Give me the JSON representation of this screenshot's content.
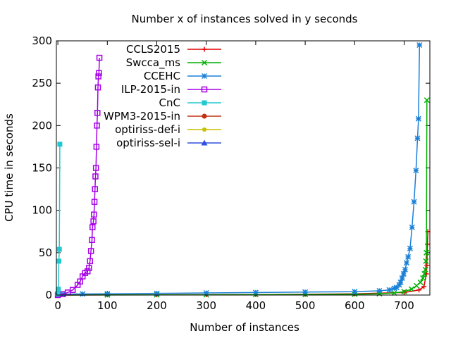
{
  "chart_data": {
    "type": "line",
    "title": "Number x of instances solved in y seconds",
    "xlabel": "Number of instances",
    "ylabel": "CPU time in seconds",
    "xlim": [
      -3,
      752
    ],
    "ylim": [
      0,
      300
    ],
    "xticks": [
      0,
      100,
      200,
      300,
      400,
      500,
      600,
      700
    ],
    "yticks": [
      0,
      50,
      100,
      150,
      200,
      250,
      300
    ],
    "grid": false,
    "legend_position": "top-left (inside plot)",
    "series": [
      {
        "name": "CCLS2015",
        "color": "#e00000",
        "marker": "plus",
        "x": [
          0,
          100,
          200,
          300,
          400,
          500,
          600,
          700,
          730,
          740,
          745,
          746,
          747,
          748
        ],
        "y": [
          0,
          0.2,
          0.3,
          0.4,
          0.6,
          0.9,
          1.5,
          3,
          6,
          10,
          25,
          35,
          60,
          75
        ]
      },
      {
        "name": "Swcca_ms",
        "color": "#00b000",
        "marker": "x",
        "x": [
          0,
          100,
          200,
          300,
          400,
          500,
          600,
          650,
          680,
          700,
          715,
          725,
          733,
          738,
          741,
          743,
          744,
          745,
          746
        ],
        "y": [
          0,
          0.1,
          0.2,
          0.3,
          0.5,
          0.7,
          1.0,
          1.5,
          2.5,
          4,
          7,
          11,
          15,
          20,
          25,
          30,
          40,
          50,
          230
        ]
      },
      {
        "name": "CCEHC",
        "color": "#1a80d8",
        "marker": "star",
        "x": [
          0,
          10,
          50,
          100,
          200,
          300,
          400,
          500,
          600,
          650,
          670,
          680,
          685,
          690,
          693,
          696,
          699,
          702,
          705,
          708,
          712,
          716,
          720,
          724,
          727,
          729,
          731
        ],
        "y": [
          0,
          1.0,
          1.3,
          1.5,
          2.0,
          2.5,
          3.0,
          3.5,
          4.0,
          5.0,
          6.0,
          8.0,
          9.0,
          12,
          15,
          20,
          25,
          30,
          38,
          45,
          55,
          80,
          110,
          147,
          185,
          208,
          295
        ]
      },
      {
        "name": "ILP-2015-in",
        "color": "#a800e8",
        "marker": "box",
        "x": [
          0,
          10,
          20,
          30,
          40,
          45,
          50,
          55,
          60,
          63,
          65,
          67,
          69,
          70,
          72,
          73,
          74,
          75,
          76,
          77,
          78,
          79,
          80,
          81,
          82,
          83,
          84
        ],
        "y": [
          0,
          1,
          3,
          6,
          12,
          16,
          22,
          26,
          28,
          32,
          40,
          52,
          65,
          80,
          87,
          95,
          110,
          125,
          140,
          150,
          175,
          200,
          215,
          245,
          258,
          262,
          280
        ]
      },
      {
        "name": "CnC",
        "color": "#20c8d0",
        "marker": "filled-box",
        "x": [
          0,
          1,
          2,
          3,
          4
        ],
        "y": [
          2,
          7,
          40,
          54,
          178
        ]
      },
      {
        "name": "WPM3-2015-in",
        "color": "#c03010",
        "marker": "filled-circle",
        "x": [],
        "y": []
      },
      {
        "name": "optiriss-def-i",
        "color": "#c8c000",
        "marker": "filled-pentagon",
        "x": [],
        "y": []
      },
      {
        "name": "optiriss-sel-i",
        "color": "#3050e0",
        "marker": "filled-triangle",
        "x": [],
        "y": []
      }
    ]
  }
}
